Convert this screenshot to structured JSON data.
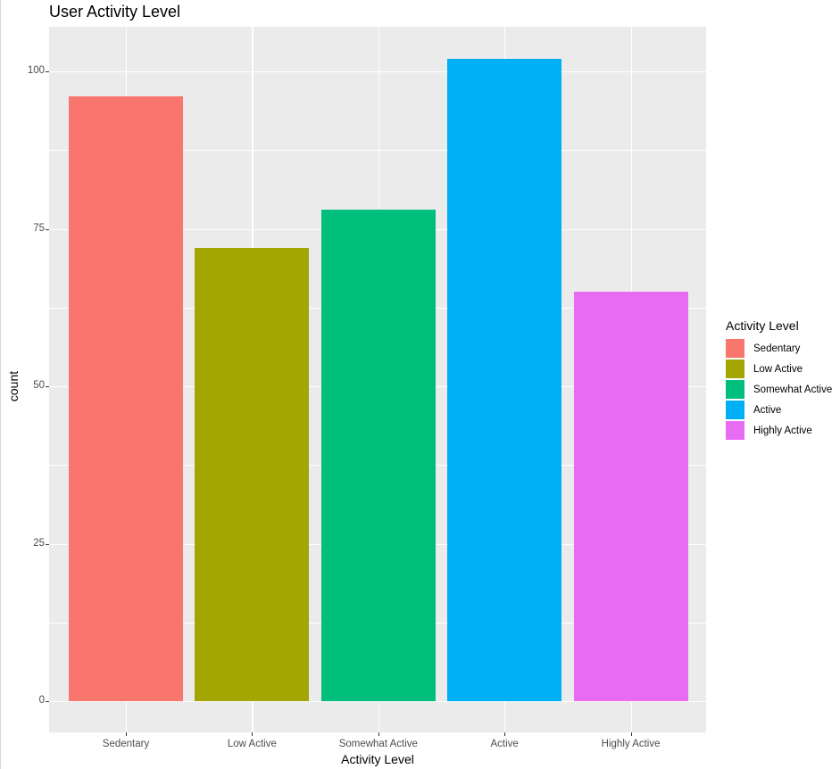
{
  "chart_data": {
    "type": "bar",
    "title": "User Activity Level",
    "xlabel": "Activity Level",
    "ylabel": "count",
    "categories": [
      "Sedentary",
      "Low Active",
      "Somewhat Active",
      "Active",
      "Highly Active"
    ],
    "values": [
      96,
      72,
      78,
      102,
      65
    ],
    "colors": [
      "#F8766D",
      "#A3A500",
      "#00BF7D",
      "#00B0F6",
      "#E76BF3"
    ],
    "yticks": [
      0,
      25,
      50,
      75,
      100
    ],
    "ylim": [
      -5,
      107
    ],
    "grid": true,
    "legend": {
      "title": "Activity Level",
      "position": "right",
      "entries": [
        "Sedentary",
        "Low Active",
        "Somewhat Active",
        "Active",
        "Highly Active"
      ]
    }
  },
  "labels": {
    "title": "User Activity Level",
    "xlabel": "Activity Level",
    "ylabel": "count",
    "legend_title": "Activity Level"
  }
}
